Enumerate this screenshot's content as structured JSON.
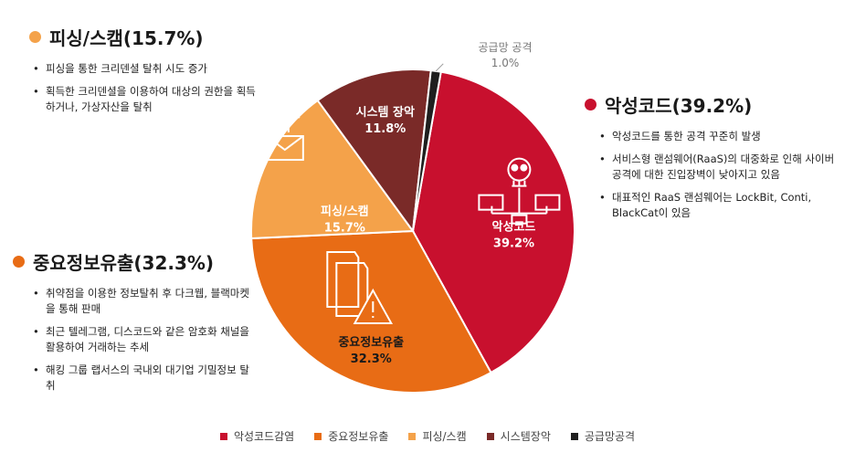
{
  "chart_data": {
    "type": "pie",
    "start_angle_deg": 0,
    "slices": [
      {
        "label": "악성코드",
        "value": 39.2,
        "display": "39.2%",
        "color": "#c8102e",
        "legend": "악성코드감염",
        "icon": "skull-network-icon"
      },
      {
        "label": "중요정보유출",
        "value": 32.3,
        "display": "32.3%",
        "color": "#e86c15",
        "legend": "중요정보유출",
        "icon": "warning-documents-icon"
      },
      {
        "label": "피싱/스캠",
        "value": 15.7,
        "display": "15.7%",
        "color": "#f4a24a",
        "legend": "피싱/스캠",
        "icon": "hooked-envelope-icon"
      },
      {
        "label": "시스템 장악",
        "value": 11.8,
        "display": "11.8%",
        "color": "#7a2a28",
        "legend": "시스템장악",
        "icon": ""
      },
      {
        "label": "공급망 공격",
        "value": 1.0,
        "display": "1.0%",
        "color": "#1f1f1f",
        "legend": "공급망공격",
        "icon": ""
      }
    ],
    "legend_position": "bottom"
  },
  "panels": {
    "phishing": {
      "title": "피싱/스캠(15.7%)",
      "color": "#f4a24a",
      "bullets": [
        "피싱을 통한 크리덴셜 탈취 시도 증가",
        "획득한 크리덴셜을 이용하여 대상의 권한을 획득하거나, 가상자산을 탈취"
      ]
    },
    "leak": {
      "title": "중요정보유출(32.3%)",
      "color": "#e86c15",
      "bullets": [
        "취약점을 이용한 정보탈취 후 다크웹, 블랙마켓을 통해 판매",
        "최근 텔레그램, 디스코드와 같은 암호화 채널을 활용하여 거래하는 추세",
        "해킹 그룹 랩서스의 국내외 대기업 기밀정보 탈취"
      ]
    },
    "malware": {
      "title": "악성코드(39.2%)",
      "color": "#c8102e",
      "bullets": [
        "악성코드를 통한 공격 꾸준히 발생",
        "서비스형 랜섬웨어(RaaS)의 대중화로 인해 사이버 공격에 대한 진입장벽이 낮아지고 있음",
        "대표적인 RaaS 랜섬웨어는 LockBit, Conti, BlackCat이 있음"
      ]
    }
  }
}
